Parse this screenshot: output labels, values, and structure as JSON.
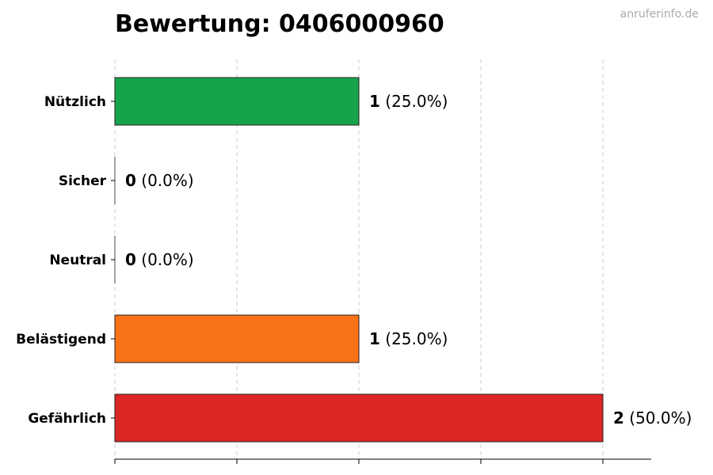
{
  "chart_data": {
    "type": "bar",
    "orientation": "horizontal",
    "title": "Bewertung: 0406000960",
    "watermark": "anruferinfo.de",
    "categories": [
      "Nützlich",
      "Sicher",
      "Neutral",
      "Belästigend",
      "Gefährlich"
    ],
    "values": [
      1,
      0,
      0,
      1,
      2
    ],
    "percent_labels": [
      "(25.0%)",
      "(0.0%)",
      "(0.0%)",
      "(25.0%)",
      "(50.0%)"
    ],
    "colors": [
      "#16a34a",
      "#16a34a",
      "#9ca3af",
      "#f97316",
      "#dc2626"
    ],
    "xlim": [
      0,
      2.2
    ],
    "grid": true
  }
}
